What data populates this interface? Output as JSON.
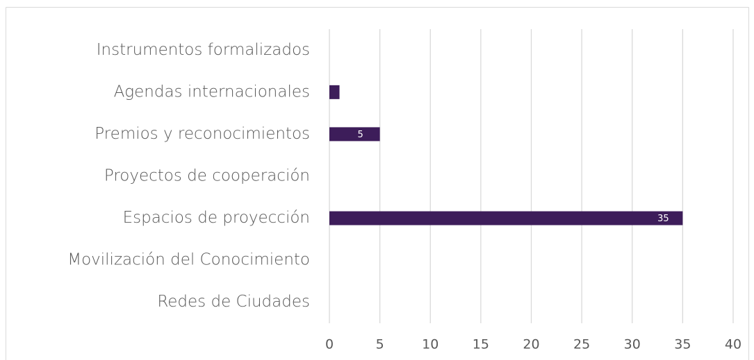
{
  "chart_data": {
    "type": "hbar",
    "categories": [
      "Instrumentos formalizados",
      "Agendas internacionales",
      "Premios y reconocimientos",
      "Proyectos de cooperación",
      "Espacios de proyección",
      "Movilización del Conocimiento",
      "Redes de Ciudades"
    ],
    "values": [
      0,
      1,
      5,
      0,
      35,
      0,
      0
    ],
    "value_labels": [
      null,
      null,
      "5",
      null,
      "35",
      null,
      null
    ],
    "color": "#3d1d5a",
    "xlim": [
      0,
      40
    ],
    "xticks": [
      0,
      5,
      10,
      15,
      20,
      25,
      30,
      35,
      40
    ],
    "grid": true
  }
}
